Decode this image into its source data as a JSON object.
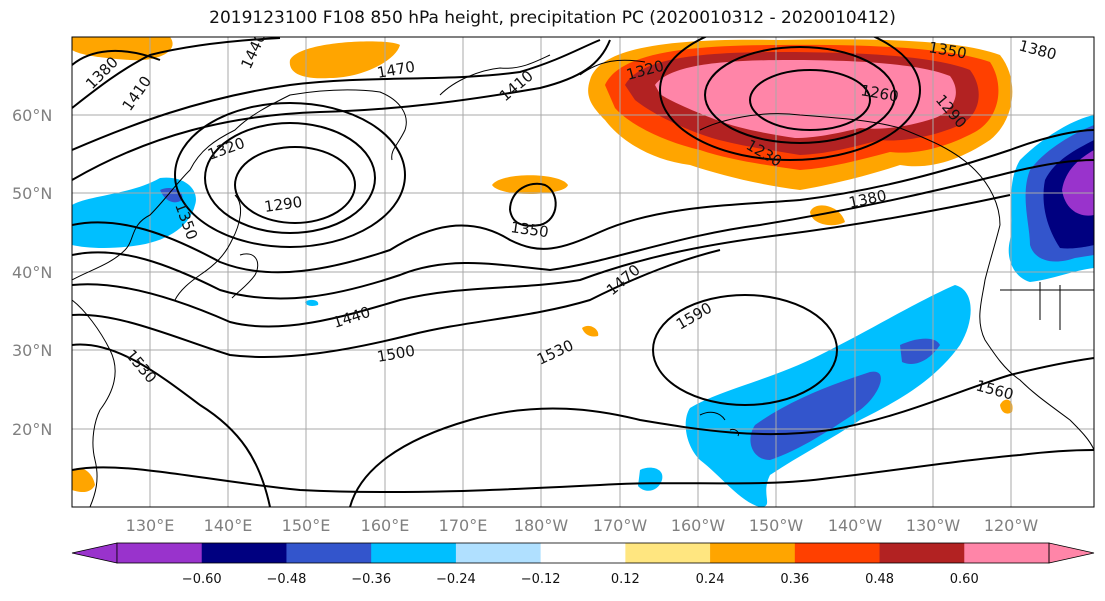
{
  "title": "2019123100 F108 850 hPa height, precipitation PC (2020010312 - 2020010412)",
  "lat_labels": [
    "60°N",
    "50°N",
    "40°N",
    "30°N",
    "20°N"
  ],
  "lon_labels": [
    "130°E",
    "140°E",
    "150°E",
    "160°E",
    "170°E",
    "180°W",
    "170°W",
    "160°W",
    "150°W",
    "140°W",
    "130°W",
    "120°W"
  ],
  "contour_labels": [
    "1380",
    "1410",
    "1440",
    "1470",
    "1410",
    "1320",
    "1350",
    "1380",
    "1320",
    "1260",
    "1290",
    "1230",
    "1290",
    "1350",
    "1380",
    "1470",
    "1590",
    "1440",
    "1500",
    "1530",
    "1530",
    "1560",
    "1350"
  ],
  "colorbar": {
    "ticks": [
      "−0.60",
      "−0.48",
      "−0.36",
      "−0.24",
      "−0.12",
      "0.12",
      "0.24",
      "0.36",
      "0.48",
      "0.60"
    ],
    "colors": [
      "#9933cc",
      "#000080",
      "#3355cc",
      "#00bfff",
      "#b0e0ff",
      "#ffffff",
      "#ffe680",
      "#ffa500",
      "#ff4000",
      "#b22222",
      "#ff85a8",
      "#ff85a8"
    ]
  }
}
